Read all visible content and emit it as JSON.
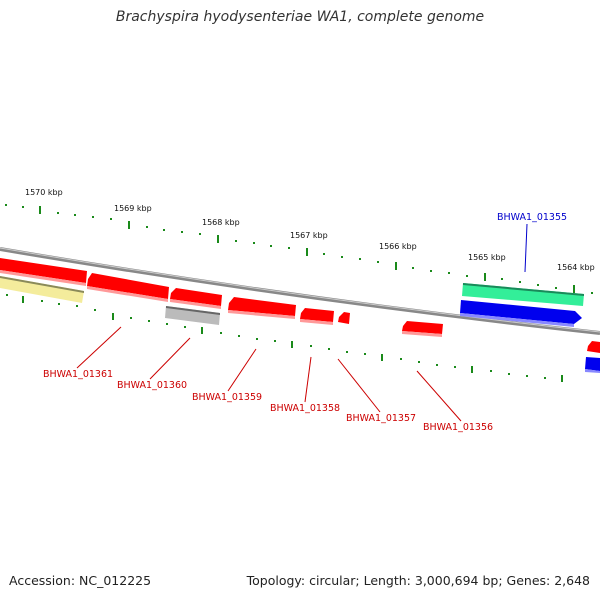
{
  "title": "Brachyspira hyodysenteriae WA1, complete genome",
  "footer": {
    "accession": "Accession: NC_012225",
    "summary": "Topology: circular; Length: 3,000,694 bp; Genes: 2,648"
  },
  "ticks": [
    "1570 kbp",
    "1569 kbp",
    "1568 kbp",
    "1567 kbp",
    "1566 kbp",
    "1565 kbp",
    "1564 kbp"
  ],
  "gene_labels": {
    "BHWA1_01355": "BHWA1_01355",
    "BHWA1_01356": "BHWA1_01356",
    "BHWA1_01357": "BHWA1_01357",
    "BHWA1_01358": "BHWA1_01358",
    "BHWA1_01359": "BHWA1_01359",
    "BHWA1_01360": "BHWA1_01360",
    "BHWA1_01361": "BHWA1_01361"
  },
  "colors": {
    "gene_reverse": "#ff0000",
    "gene_forward_blue": "#0000ee",
    "gene_teal": "#33ee99",
    "gene_yellow": "#f4ec9c",
    "gene_gray": "#bbbbbb",
    "tick_green": "#1a8a1a",
    "backbone": "#888888",
    "label_red": "#cc0000",
    "label_blue": "#0000cc"
  }
}
